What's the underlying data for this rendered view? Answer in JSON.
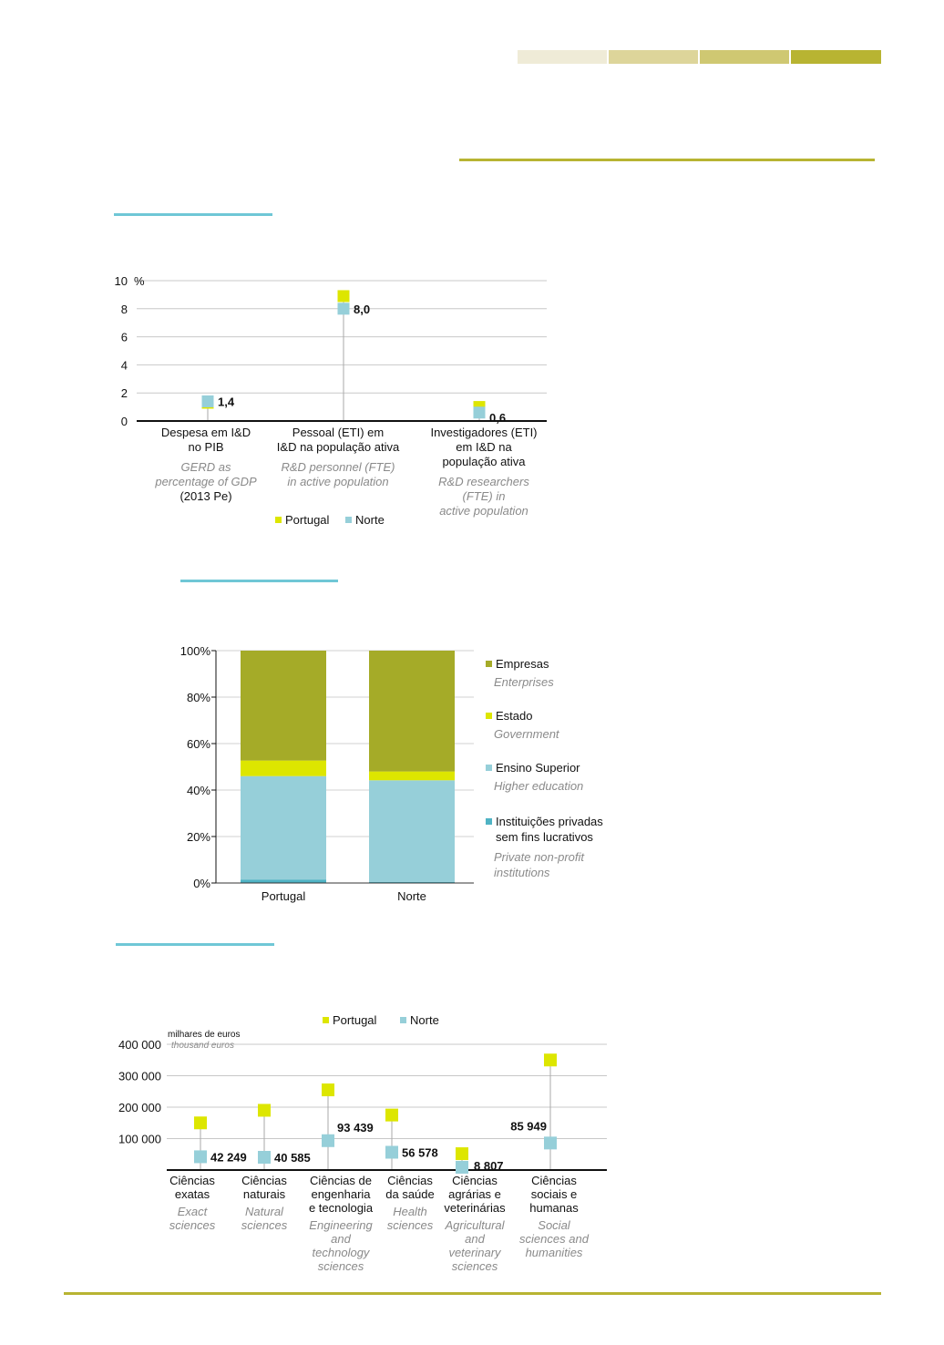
{
  "colors": {
    "portugal": "#dde600",
    "norte": "#96cfd9",
    "empresas": "#a5ab28",
    "estado": "#dde600",
    "ensino": "#96cfd9",
    "ipsfl": "#4fb3c4",
    "accent_line": "#b8b432",
    "section_line": "#6fc7d6",
    "header_bar_1": "#efebd7",
    "header_bar_2": "#ddd59a",
    "header_bar_3": "#cfc872",
    "header_bar_4": "#b8b432"
  },
  "chart_data": [
    {
      "type": "scatter",
      "unit": "%",
      "yticks": [
        "0",
        "2",
        "4",
        "6",
        "8",
        "10"
      ],
      "ylim": [
        0,
        10
      ],
      "categories": [
        {
          "pt": [
            "Despesa em I&D",
            "no PIB"
          ],
          "en": [
            "GERD as",
            "percentage of GDP"
          ],
          "note": "(2013 Pe)"
        },
        {
          "pt": [
            "Pessoal (ETI) em",
            "I&D na população ativa"
          ],
          "en": [
            "R&D personnel (FTE)",
            "in active population"
          ],
          "note": ""
        },
        {
          "pt": [
            "Investigadores (ETI)",
            "em I&D na",
            "população ativa"
          ],
          "en": [
            "R&D researchers",
            "(FTE) in",
            "active population"
          ],
          "note": ""
        }
      ],
      "series": [
        {
          "name": "Portugal",
          "values": [
            1.3,
            8.9,
            1.0
          ]
        },
        {
          "name": "Norte",
          "values": [
            1.4,
            8.0,
            0.6
          ]
        }
      ],
      "data_labels": [
        "1,4",
        "8,0",
        "0,6"
      ],
      "legend": [
        "Portugal",
        "Norte"
      ]
    },
    {
      "type": "bar",
      "stacked": true,
      "yticks": [
        "0%",
        "20%",
        "40%",
        "60%",
        "80%",
        "100%"
      ],
      "ylim": [
        0,
        100
      ],
      "categories": [
        "Portugal",
        "Norte"
      ],
      "series": [
        {
          "name": "Instituições privadas sem fins lucrativos",
          "values": [
            1.5,
            0.5
          ]
        },
        {
          "name": "Ensino Superior",
          "values": [
            44.5,
            43.7
          ]
        },
        {
          "name": "Estado",
          "values": [
            6.7,
            3.8
          ]
        },
        {
          "name": "Empresas",
          "values": [
            47.3,
            52.0
          ]
        }
      ],
      "legend": [
        {
          "pt": [
            "Empresas"
          ],
          "en": [
            "Enterprises"
          ]
        },
        {
          "pt": [
            "Estado"
          ],
          "en": [
            "Government"
          ]
        },
        {
          "pt": [
            "Ensino Superior"
          ],
          "en": [
            "Higher education"
          ]
        },
        {
          "pt": [
            "Instituições privadas",
            "sem fins lucrativos"
          ],
          "en": [
            "Private non-profit",
            "institutions"
          ]
        }
      ]
    },
    {
      "type": "scatter",
      "unit_pt": "milhares de euros",
      "unit_en": "thousand  euros",
      "yticks": [
        "100 000",
        "200 000",
        "300 000",
        "400 000"
      ],
      "ylim": [
        0,
        400000
      ],
      "categories": [
        {
          "pt": [
            "Ciências",
            "exatas"
          ],
          "en": [
            "Exact",
            "sciences"
          ]
        },
        {
          "pt": [
            "Ciências",
            "naturais"
          ],
          "en": [
            "Natural",
            "sciences"
          ]
        },
        {
          "pt": [
            "Ciências de",
            "engenharia",
            "e tecnologia"
          ],
          "en": [
            "Engineering",
            "and",
            "technology",
            "sciences"
          ]
        },
        {
          "pt": [
            "Ciências",
            "da saúde"
          ],
          "en": [
            "Health",
            "sciences"
          ]
        },
        {
          "pt": [
            "Ciências",
            "agrárias e",
            "veterinárias"
          ],
          "en": [
            "Agricultural",
            "and",
            "veterinary",
            "sciences"
          ]
        },
        {
          "pt": [
            "Ciências",
            "sociais e",
            "humanas"
          ],
          "en": [
            "Social",
            "sciences and",
            "humanities"
          ]
        }
      ],
      "series": [
        {
          "name": "Portugal",
          "values": [
            150000,
            190000,
            255000,
            175000,
            52000,
            350000
          ]
        },
        {
          "name": "Norte",
          "values": [
            42249,
            40585,
            93439,
            56578,
            8807,
            85949
          ]
        }
      ],
      "data_labels": [
        "42 249",
        "40 585",
        "93 439",
        "56 578",
        "8 807",
        "85 949"
      ],
      "legend": [
        "Portugal",
        "Norte"
      ]
    }
  ]
}
